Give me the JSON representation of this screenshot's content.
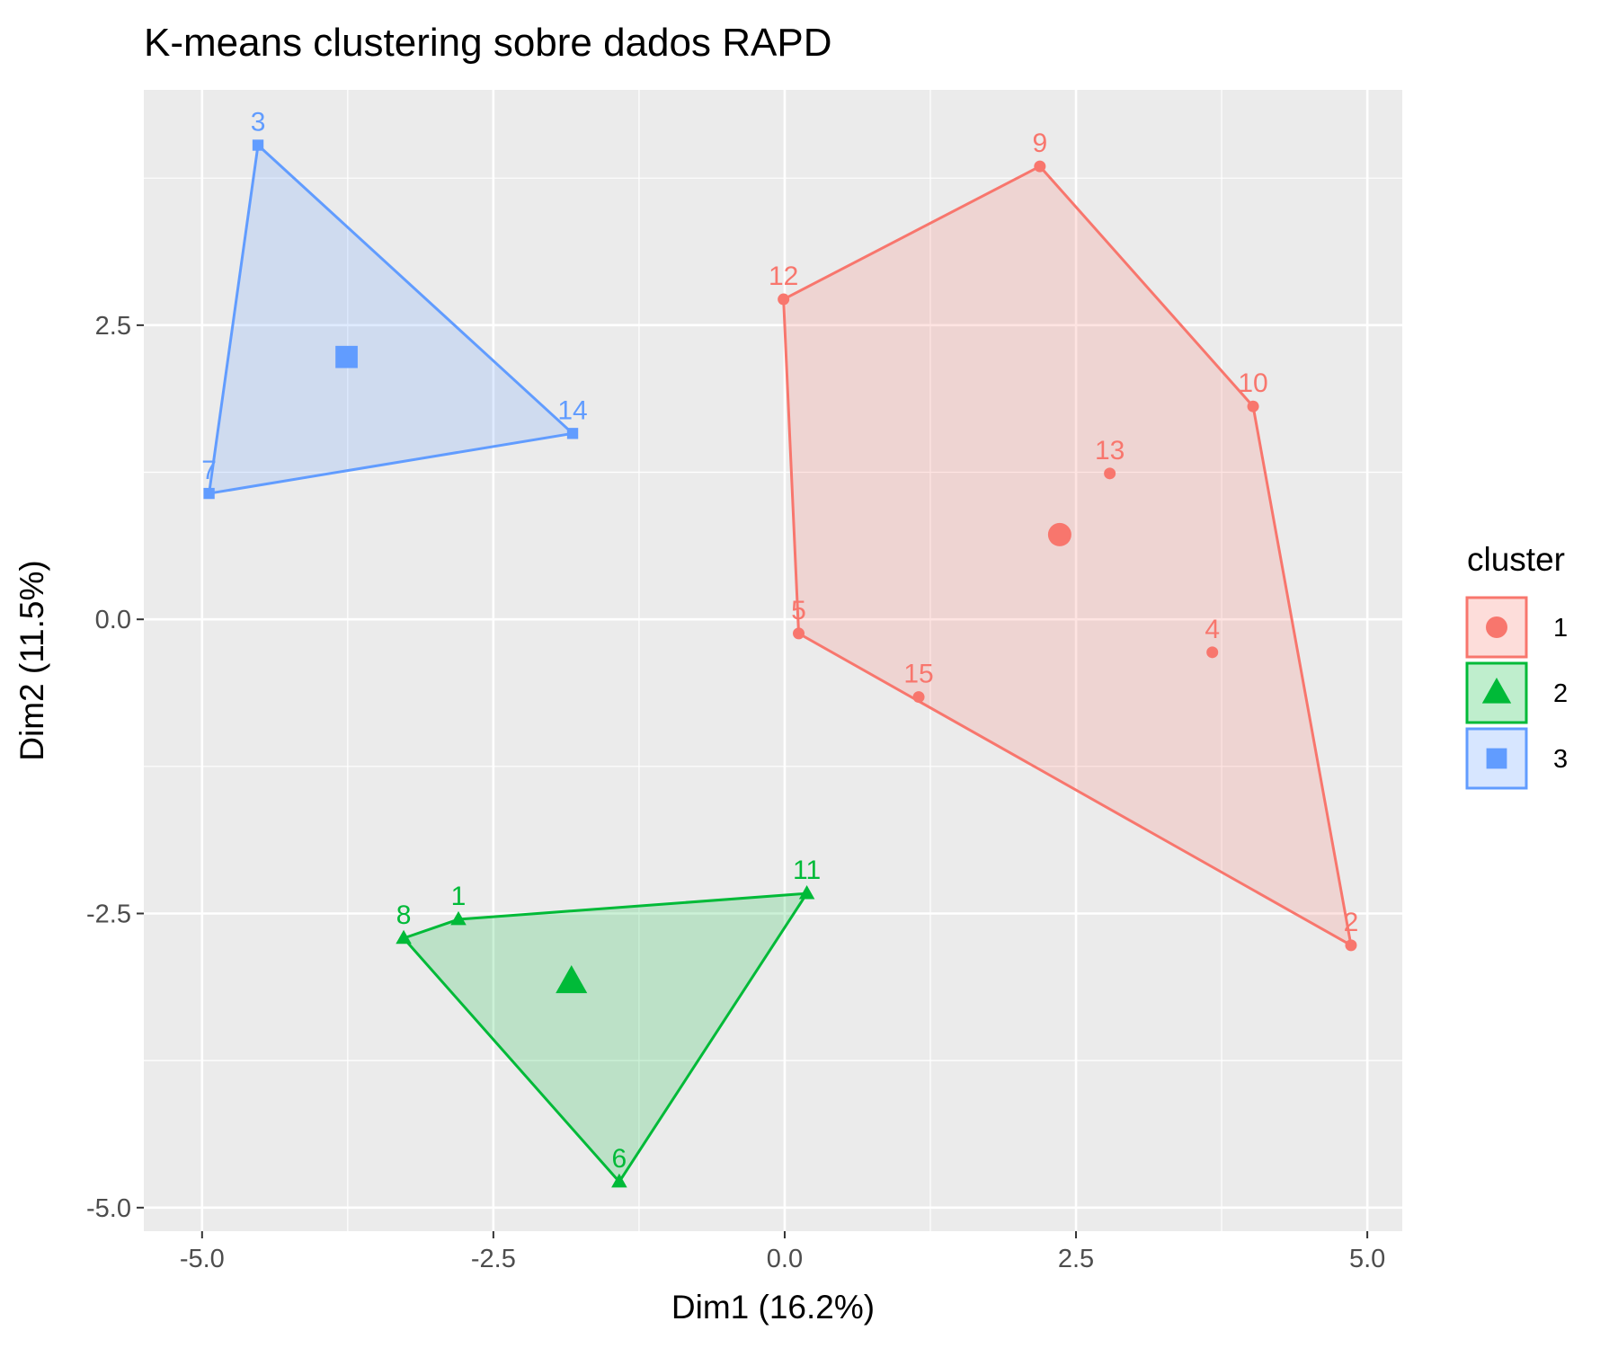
{
  "chart_data": {
    "type": "scatter",
    "title": "K-means clustering sobre dados RAPD",
    "xlabel": "Dim1 (16.2%)",
    "ylabel": "Dim2 (11.5%)",
    "xlim": [
      -5.5,
      5.3
    ],
    "ylim": [
      -5.2,
      4.5
    ],
    "x_ticks": [
      -5.0,
      -2.5,
      0.0,
      2.5,
      5.0
    ],
    "y_ticks": [
      -5.0,
      -2.5,
      0.0,
      2.5
    ],
    "x_tick_labels": [
      "-5.0",
      "-2.5",
      "0.0",
      "2.5",
      "5.0"
    ],
    "y_tick_labels": [
      "-5.0",
      "-2.5",
      "0.0",
      "2.5"
    ],
    "grid": true,
    "legend": {
      "title": "cluster",
      "position": "right"
    },
    "series": [
      {
        "name": "1",
        "color": "#F8766D",
        "shape": "circle",
        "points": [
          {
            "label": "9",
            "x": 2.19,
            "y": 3.85
          },
          {
            "label": "12",
            "x": -0.01,
            "y": 2.72
          },
          {
            "label": "10",
            "x": 4.02,
            "y": 1.81
          },
          {
            "label": "13",
            "x": 2.79,
            "y": 1.24
          },
          {
            "label": "5",
            "x": 0.12,
            "y": -0.12
          },
          {
            "label": "4",
            "x": 3.67,
            "y": -0.28
          },
          {
            "label": "15",
            "x": 1.15,
            "y": -0.66
          },
          {
            "label": "2",
            "x": 4.86,
            "y": -2.77
          }
        ],
        "hull": [
          "9",
          "10",
          "2",
          "5",
          "12"
        ],
        "centroid": {
          "x": 2.36,
          "y": 0.72
        }
      },
      {
        "name": "2",
        "color": "#00BA38",
        "shape": "triangle",
        "points": [
          {
            "label": "11",
            "x": 0.19,
            "y": -2.33
          },
          {
            "label": "8",
            "x": -3.27,
            "y": -2.71
          },
          {
            "label": "1",
            "x": -2.8,
            "y": -2.55
          },
          {
            "label": "6",
            "x": -1.42,
            "y": -4.78
          }
        ],
        "hull": [
          "8",
          "1",
          "11",
          "6"
        ],
        "centroid": {
          "x": -1.83,
          "y": -3.08
        }
      },
      {
        "name": "3",
        "color": "#619CFF",
        "shape": "square",
        "points": [
          {
            "label": "3",
            "x": -4.52,
            "y": 4.03
          },
          {
            "label": "14",
            "x": -1.82,
            "y": 1.58
          },
          {
            "label": "7",
            "x": -4.94,
            "y": 1.07
          }
        ],
        "hull": [
          "3",
          "14",
          "7"
        ],
        "centroid": {
          "x": -3.76,
          "y": 2.23
        }
      }
    ]
  }
}
